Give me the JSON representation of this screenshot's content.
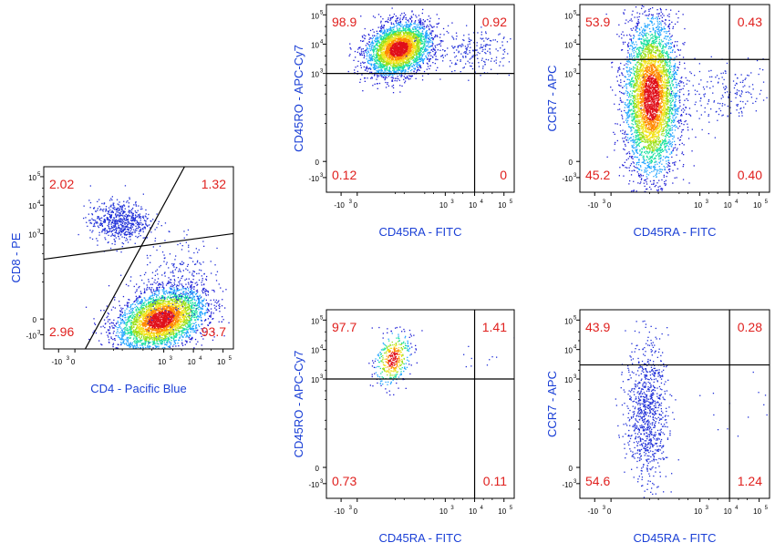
{
  "colors": {
    "percent_text": "#e0201e",
    "axis_label": "#1a3fd6",
    "frame": "#000000",
    "density_scale": [
      "#1f1fd6",
      "#1ea4ff",
      "#19e0a0",
      "#9be01a",
      "#f2e21a",
      "#ff8a00",
      "#e0101a"
    ]
  },
  "chart_data": [
    {
      "id": "p1",
      "type": "scatter",
      "xlabel": "CD4 - Pacific Blue",
      "ylabel": "CD8 - PE",
      "xticks": [
        {
          "b": "-10",
          "e": "3",
          "v": -1000
        },
        {
          "b": "0",
          "e": "",
          "v": 0
        },
        {
          "b": "10",
          "e": "3",
          "v": 1000
        },
        {
          "b": "10",
          "e": "4",
          "v": 10000
        },
        {
          "b": "10",
          "e": "5",
          "v": 100000
        }
      ],
      "yticks": [
        {
          "b": "-10",
          "e": "3",
          "v": -1000
        },
        {
          "b": "0",
          "e": "",
          "v": 0
        },
        {
          "b": "10",
          "e": "3",
          "v": 1000
        },
        {
          "b": "10",
          "e": "4",
          "v": 10000
        },
        {
          "b": "10",
          "e": "5",
          "v": 100000
        }
      ],
      "gate_type": "diagonal",
      "quadrants": {
        "UL": "2.02",
        "UR": "1.32",
        "LL": "2.96",
        "LR": "93.7"
      },
      "populations": [
        {
          "cx": 2.9,
          "cy": 0.0,
          "sx": 0.75,
          "sy": 0.55,
          "rho": 0.35,
          "n": 3600,
          "density": true
        },
        {
          "cx": 1.5,
          "cy": 3.45,
          "sx": 0.5,
          "sy": 0.35,
          "rho": 0.0,
          "n": 650,
          "density": false
        },
        {
          "cx": 3.3,
          "cy": 1.3,
          "sx": 0.6,
          "sy": 0.9,
          "rho": 0.2,
          "n": 250,
          "density": false
        }
      ]
    },
    {
      "id": "p2",
      "type": "scatter",
      "xlabel": "CD45RA - FITC",
      "ylabel": "CD45RO - APC-Cy7",
      "xticks": [
        {
          "b": "-10",
          "e": "3",
          "v": -1000
        },
        {
          "b": "0",
          "e": "",
          "v": 0
        },
        {
          "b": "10",
          "e": "3",
          "v": 1000
        },
        {
          "b": "10",
          "e": "4",
          "v": 10000
        },
        {
          "b": "10",
          "e": "5",
          "v": 100000
        }
      ],
      "yticks": [
        {
          "b": "-10",
          "e": "3",
          "v": -1000
        },
        {
          "b": "0",
          "e": "",
          "v": 0
        },
        {
          "b": "10",
          "e": "3",
          "v": 1000
        },
        {
          "b": "10",
          "e": "4",
          "v": 10000
        },
        {
          "b": "10",
          "e": "5",
          "v": 100000
        }
      ],
      "gate_type": "cross",
      "gate_x": 10000,
      "gate_y": 1000,
      "quadrants": {
        "UL": "98.9",
        "UR": "0.92",
        "LL": "0.12",
        "LR": "0"
      },
      "populations": [
        {
          "cx": 1.4,
          "cy": 3.85,
          "sx": 0.55,
          "sy": 0.45,
          "rho": 0.25,
          "n": 3200,
          "density": true
        },
        {
          "cx": 3.9,
          "cy": 3.75,
          "sx": 0.8,
          "sy": 0.35,
          "rho": 0.0,
          "n": 220,
          "density": false
        }
      ]
    },
    {
      "id": "p3",
      "type": "scatter",
      "xlabel": "CD45RA - FITC",
      "ylabel": "CCR7 - APC",
      "xticks": [
        {
          "b": "-10",
          "e": "3",
          "v": -1000
        },
        {
          "b": "0",
          "e": "",
          "v": 0
        },
        {
          "b": "10",
          "e": "3",
          "v": 1000
        },
        {
          "b": "10",
          "e": "4",
          "v": 10000
        },
        {
          "b": "10",
          "e": "5",
          "v": 100000
        }
      ],
      "yticks": [
        {
          "b": "-10",
          "e": "3",
          "v": -1000
        },
        {
          "b": "0",
          "e": "",
          "v": 0
        },
        {
          "b": "10",
          "e": "3",
          "v": 1000
        },
        {
          "b": "10",
          "e": "4",
          "v": 10000
        },
        {
          "b": "10",
          "e": "5",
          "v": 100000
        }
      ],
      "gate_type": "cross",
      "gate_x": 10000,
      "gate_y": 3000,
      "quadrants": {
        "UL": "53.9",
        "UR": "0.43",
        "LL": "45.2",
        "LR": "0.40"
      },
      "populations": [
        {
          "cx": 1.35,
          "cy": 2.2,
          "sx": 0.45,
          "sy": 1.35,
          "rho": 0.0,
          "n": 4200,
          "density": true
        },
        {
          "cx": 3.8,
          "cy": 2.3,
          "sx": 0.9,
          "sy": 0.5,
          "rho": 0.0,
          "n": 200,
          "density": false
        }
      ]
    },
    {
      "id": "p4",
      "type": "scatter",
      "xlabel": "CD45RA - FITC",
      "ylabel": "CD45RO - APC-Cy7",
      "xticks": [
        {
          "b": "-10",
          "e": "3",
          "v": -1000
        },
        {
          "b": "0",
          "e": "",
          "v": 0
        },
        {
          "b": "10",
          "e": "3",
          "v": 1000
        },
        {
          "b": "10",
          "e": "4",
          "v": 10000
        },
        {
          "b": "10",
          "e": "5",
          "v": 100000
        }
      ],
      "yticks": [
        {
          "b": "-10",
          "e": "3",
          "v": -1000
        },
        {
          "b": "0",
          "e": "",
          "v": 0
        },
        {
          "b": "10",
          "e": "3",
          "v": 1000
        },
        {
          "b": "10",
          "e": "4",
          "v": 10000
        },
        {
          "b": "10",
          "e": "5",
          "v": 100000
        }
      ],
      "gate_type": "cross",
      "gate_x": 10000,
      "gate_y": 1000,
      "quadrants": {
        "UL": "97.7",
        "UR": "1.41",
        "LL": "0.73",
        "LR": "0.11"
      },
      "populations": [
        {
          "cx": 1.2,
          "cy": 3.7,
          "sx": 0.3,
          "sy": 0.45,
          "rho": 0.3,
          "n": 420,
          "density": true
        },
        {
          "cx": 4.3,
          "cy": 3.6,
          "sx": 0.7,
          "sy": 0.3,
          "rho": 0.0,
          "n": 12,
          "density": false
        }
      ]
    },
    {
      "id": "p5",
      "type": "scatter",
      "xlabel": "CD45RA - FITC",
      "ylabel": "CCR7 - APC",
      "xticks": [
        {
          "b": "-10",
          "e": "3",
          "v": -1000
        },
        {
          "b": "0",
          "e": "",
          "v": 0
        },
        {
          "b": "10",
          "e": "3",
          "v": 1000
        },
        {
          "b": "10",
          "e": "4",
          "v": 10000
        },
        {
          "b": "10",
          "e": "5",
          "v": 100000
        }
      ],
      "yticks": [
        {
          "b": "-10",
          "e": "3",
          "v": -1000
        },
        {
          "b": "0",
          "e": "",
          "v": 0
        },
        {
          "b": "10",
          "e": "3",
          "v": 1000
        },
        {
          "b": "10",
          "e": "4",
          "v": 10000
        },
        {
          "b": "10",
          "e": "5",
          "v": 100000
        }
      ],
      "gate_type": "cross",
      "gate_x": 10000,
      "gate_y": 3000,
      "quadrants": {
        "UL": "43.9",
        "UR": "0.28",
        "LL": "54.6",
        "LR": "1.24"
      },
      "populations": [
        {
          "cx": 1.2,
          "cy": 1.9,
          "sx": 0.35,
          "sy": 1.2,
          "rho": 0.0,
          "n": 900,
          "density": false
        },
        {
          "cx": 4.3,
          "cy": 1.8,
          "sx": 0.8,
          "sy": 0.6,
          "rho": 0.0,
          "n": 14,
          "density": false
        }
      ]
    }
  ]
}
